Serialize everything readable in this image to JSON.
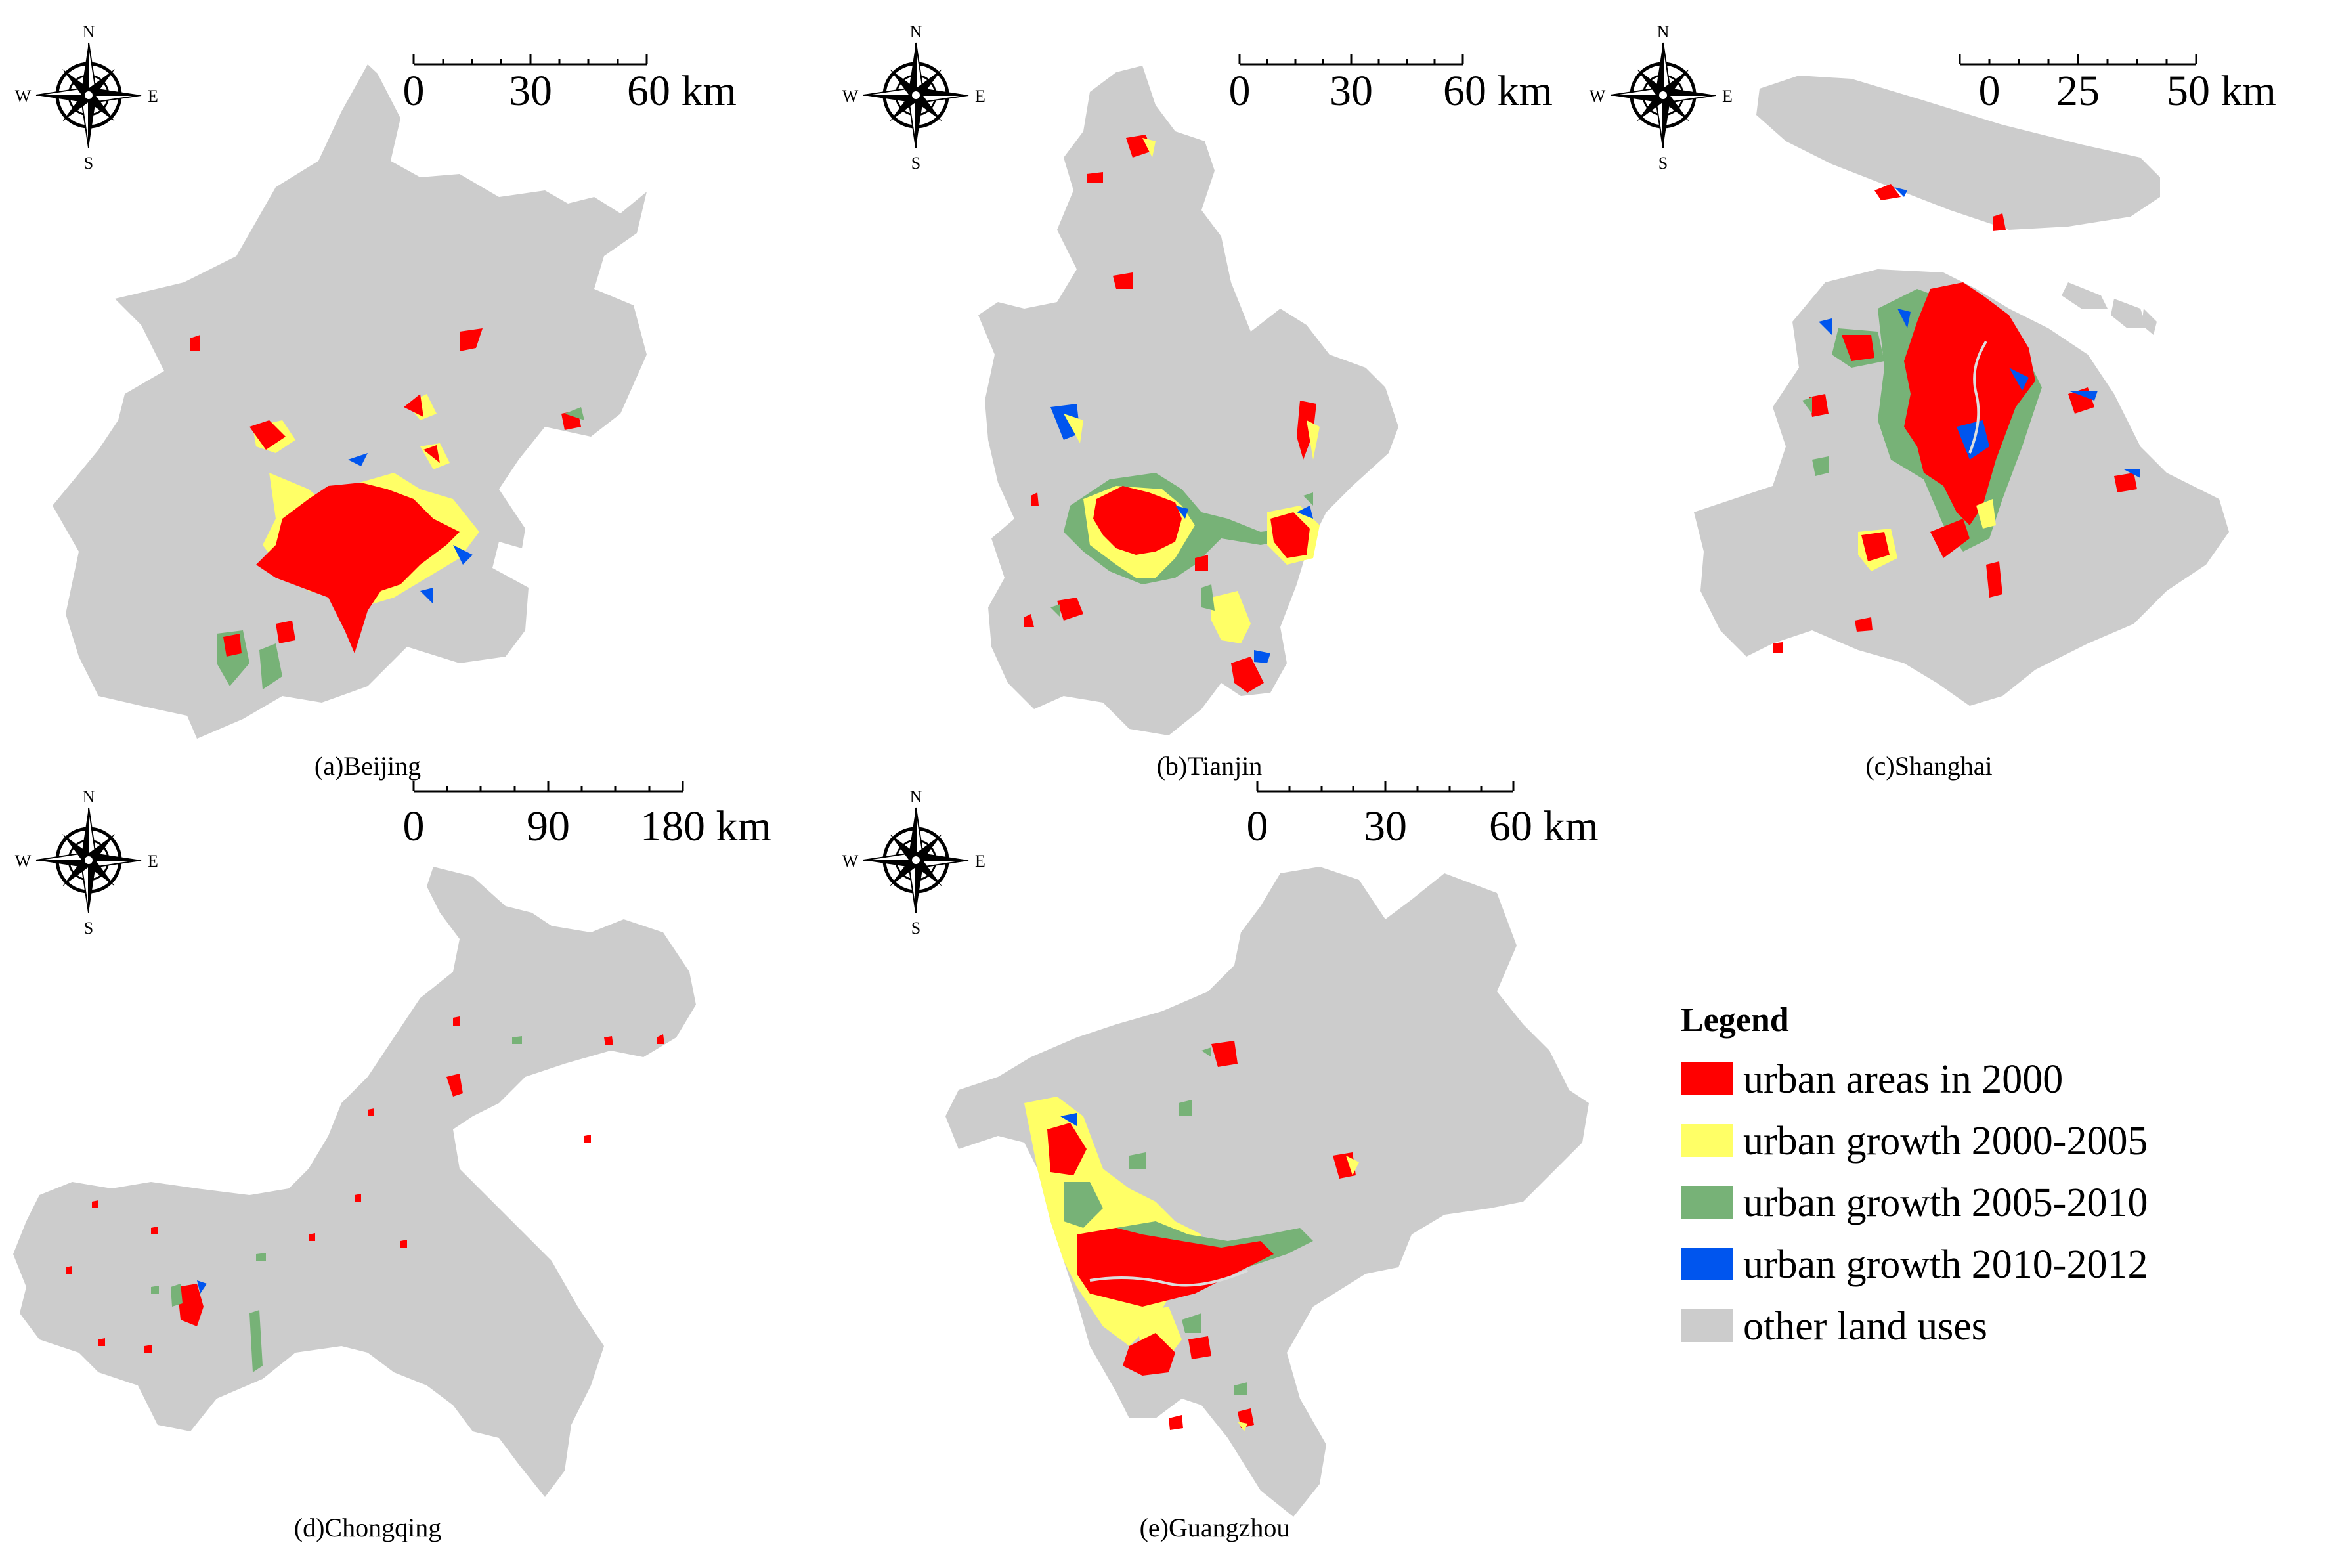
{
  "figure": {
    "panels": [
      {
        "id": "beijing",
        "label": "(a)Beijing",
        "scale": {
          "ticks": [
            "0",
            "30",
            "60 km"
          ]
        },
        "compass": {
          "n": "N",
          "s": "S",
          "e": "E",
          "w": "W"
        }
      },
      {
        "id": "tianjin",
        "label": "(b)Tianjin",
        "scale": {
          "ticks": [
            "0",
            "30",
            "60 km"
          ]
        },
        "compass": {
          "n": "N",
          "s": "S",
          "e": "E",
          "w": "W"
        }
      },
      {
        "id": "shanghai",
        "label": "(c)Shanghai",
        "scale": {
          "ticks": [
            "0",
            "25",
            "50 km"
          ]
        },
        "compass": {
          "n": "N",
          "s": "S",
          "e": "E",
          "w": "W"
        }
      },
      {
        "id": "chongqing",
        "label": "(d)Chongqing",
        "scale": {
          "ticks": [
            "0",
            "90",
            "180 km"
          ]
        },
        "compass": {
          "n": "N",
          "s": "S",
          "e": "E",
          "w": "W"
        }
      },
      {
        "id": "guangzhou",
        "label": "(e)Guangzhou",
        "scale": {
          "ticks": [
            "0",
            "30",
            "60 km"
          ]
        },
        "compass": {
          "n": "N",
          "s": "S",
          "e": "E",
          "w": "W"
        }
      }
    ],
    "legend": {
      "title": "Legend",
      "items": [
        {
          "label": "urban areas in 2000",
          "color": "#ff0000"
        },
        {
          "label": "urban growth 2000-2005",
          "color": "#ffff66"
        },
        {
          "label": "urban growth 2005-2010",
          "color": "#77b277"
        },
        {
          "label": "urban growth 2010-2012",
          "color": "#0055ee"
        },
        {
          "label": "other land uses",
          "color": "#cccccc"
        }
      ]
    }
  }
}
